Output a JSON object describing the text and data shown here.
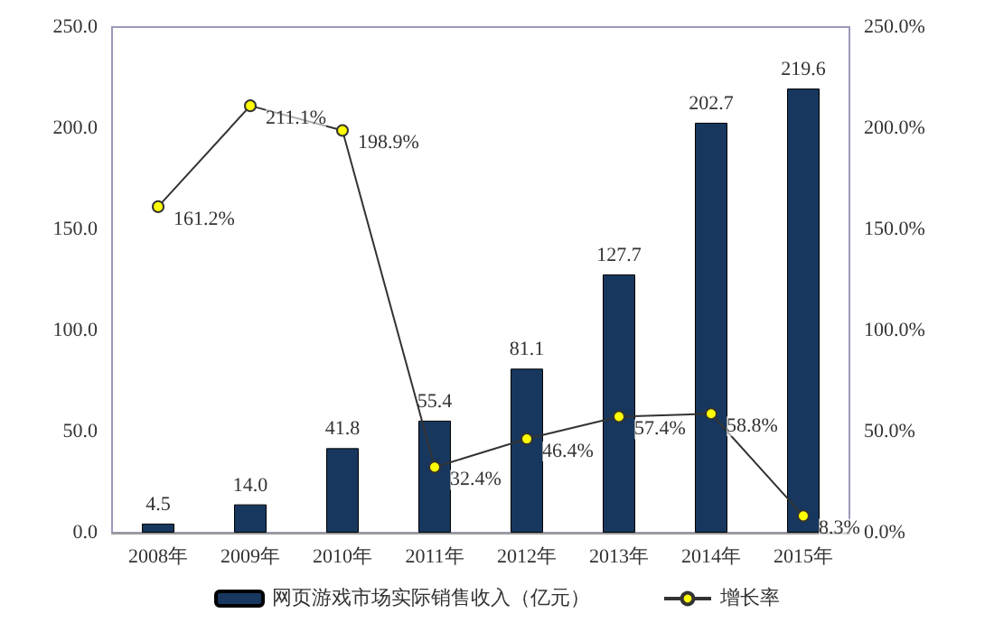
{
  "chart_data": {
    "type": "bar",
    "categories": [
      "2008年",
      "2009年",
      "2010年",
      "2011年",
      "2012年",
      "2013年",
      "2014年",
      "2015年"
    ],
    "series": [
      {
        "name": "网页游戏市场实际销售收入（亿元）",
        "color": "#17375e",
        "values": [
          4.5,
          14.0,
          41.8,
          55.4,
          81.1,
          127.7,
          202.7,
          219.6
        ],
        "value_labels": [
          "4.5",
          "14.0",
          "41.8",
          "55.4",
          "81.1",
          "127.7",
          "202.7",
          "219.6"
        ]
      },
      {
        "name": "增长率",
        "type": "line",
        "axis": "y2",
        "color": "#333333",
        "marker": "circle",
        "values": [
          161.2,
          211.1,
          198.9,
          32.4,
          46.4,
          57.4,
          58.8,
          8.3
        ],
        "value_labels": [
          "161.2%",
          "211.1%",
          "198.9%",
          "32.4%",
          "46.4%",
          "57.4%",
          "58.8%",
          "8.3%"
        ]
      }
    ],
    "ylim": [
      0,
      250
    ],
    "yticks": [
      {
        "value": 0,
        "label": "0.0"
      },
      {
        "value": 50,
        "label": "50.0"
      },
      {
        "value": 100,
        "label": "100.0"
      },
      {
        "value": 150,
        "label": "150.0"
      },
      {
        "value": 200,
        "label": "200.0"
      },
      {
        "value": 250,
        "label": "250.0"
      }
    ],
    "y2lim": [
      0,
      250
    ],
    "y2ticks": [
      {
        "value": 0,
        "label": "0.0%"
      },
      {
        "value": 50,
        "label": "50.0%"
      },
      {
        "value": 100,
        "label": "100.0%"
      },
      {
        "value": 150,
        "label": "150.0%"
      },
      {
        "value": 200,
        "label": "200.0%"
      },
      {
        "value": 250,
        "label": "250.0%"
      }
    ],
    "grid": false,
    "legend": "bottom"
  }
}
